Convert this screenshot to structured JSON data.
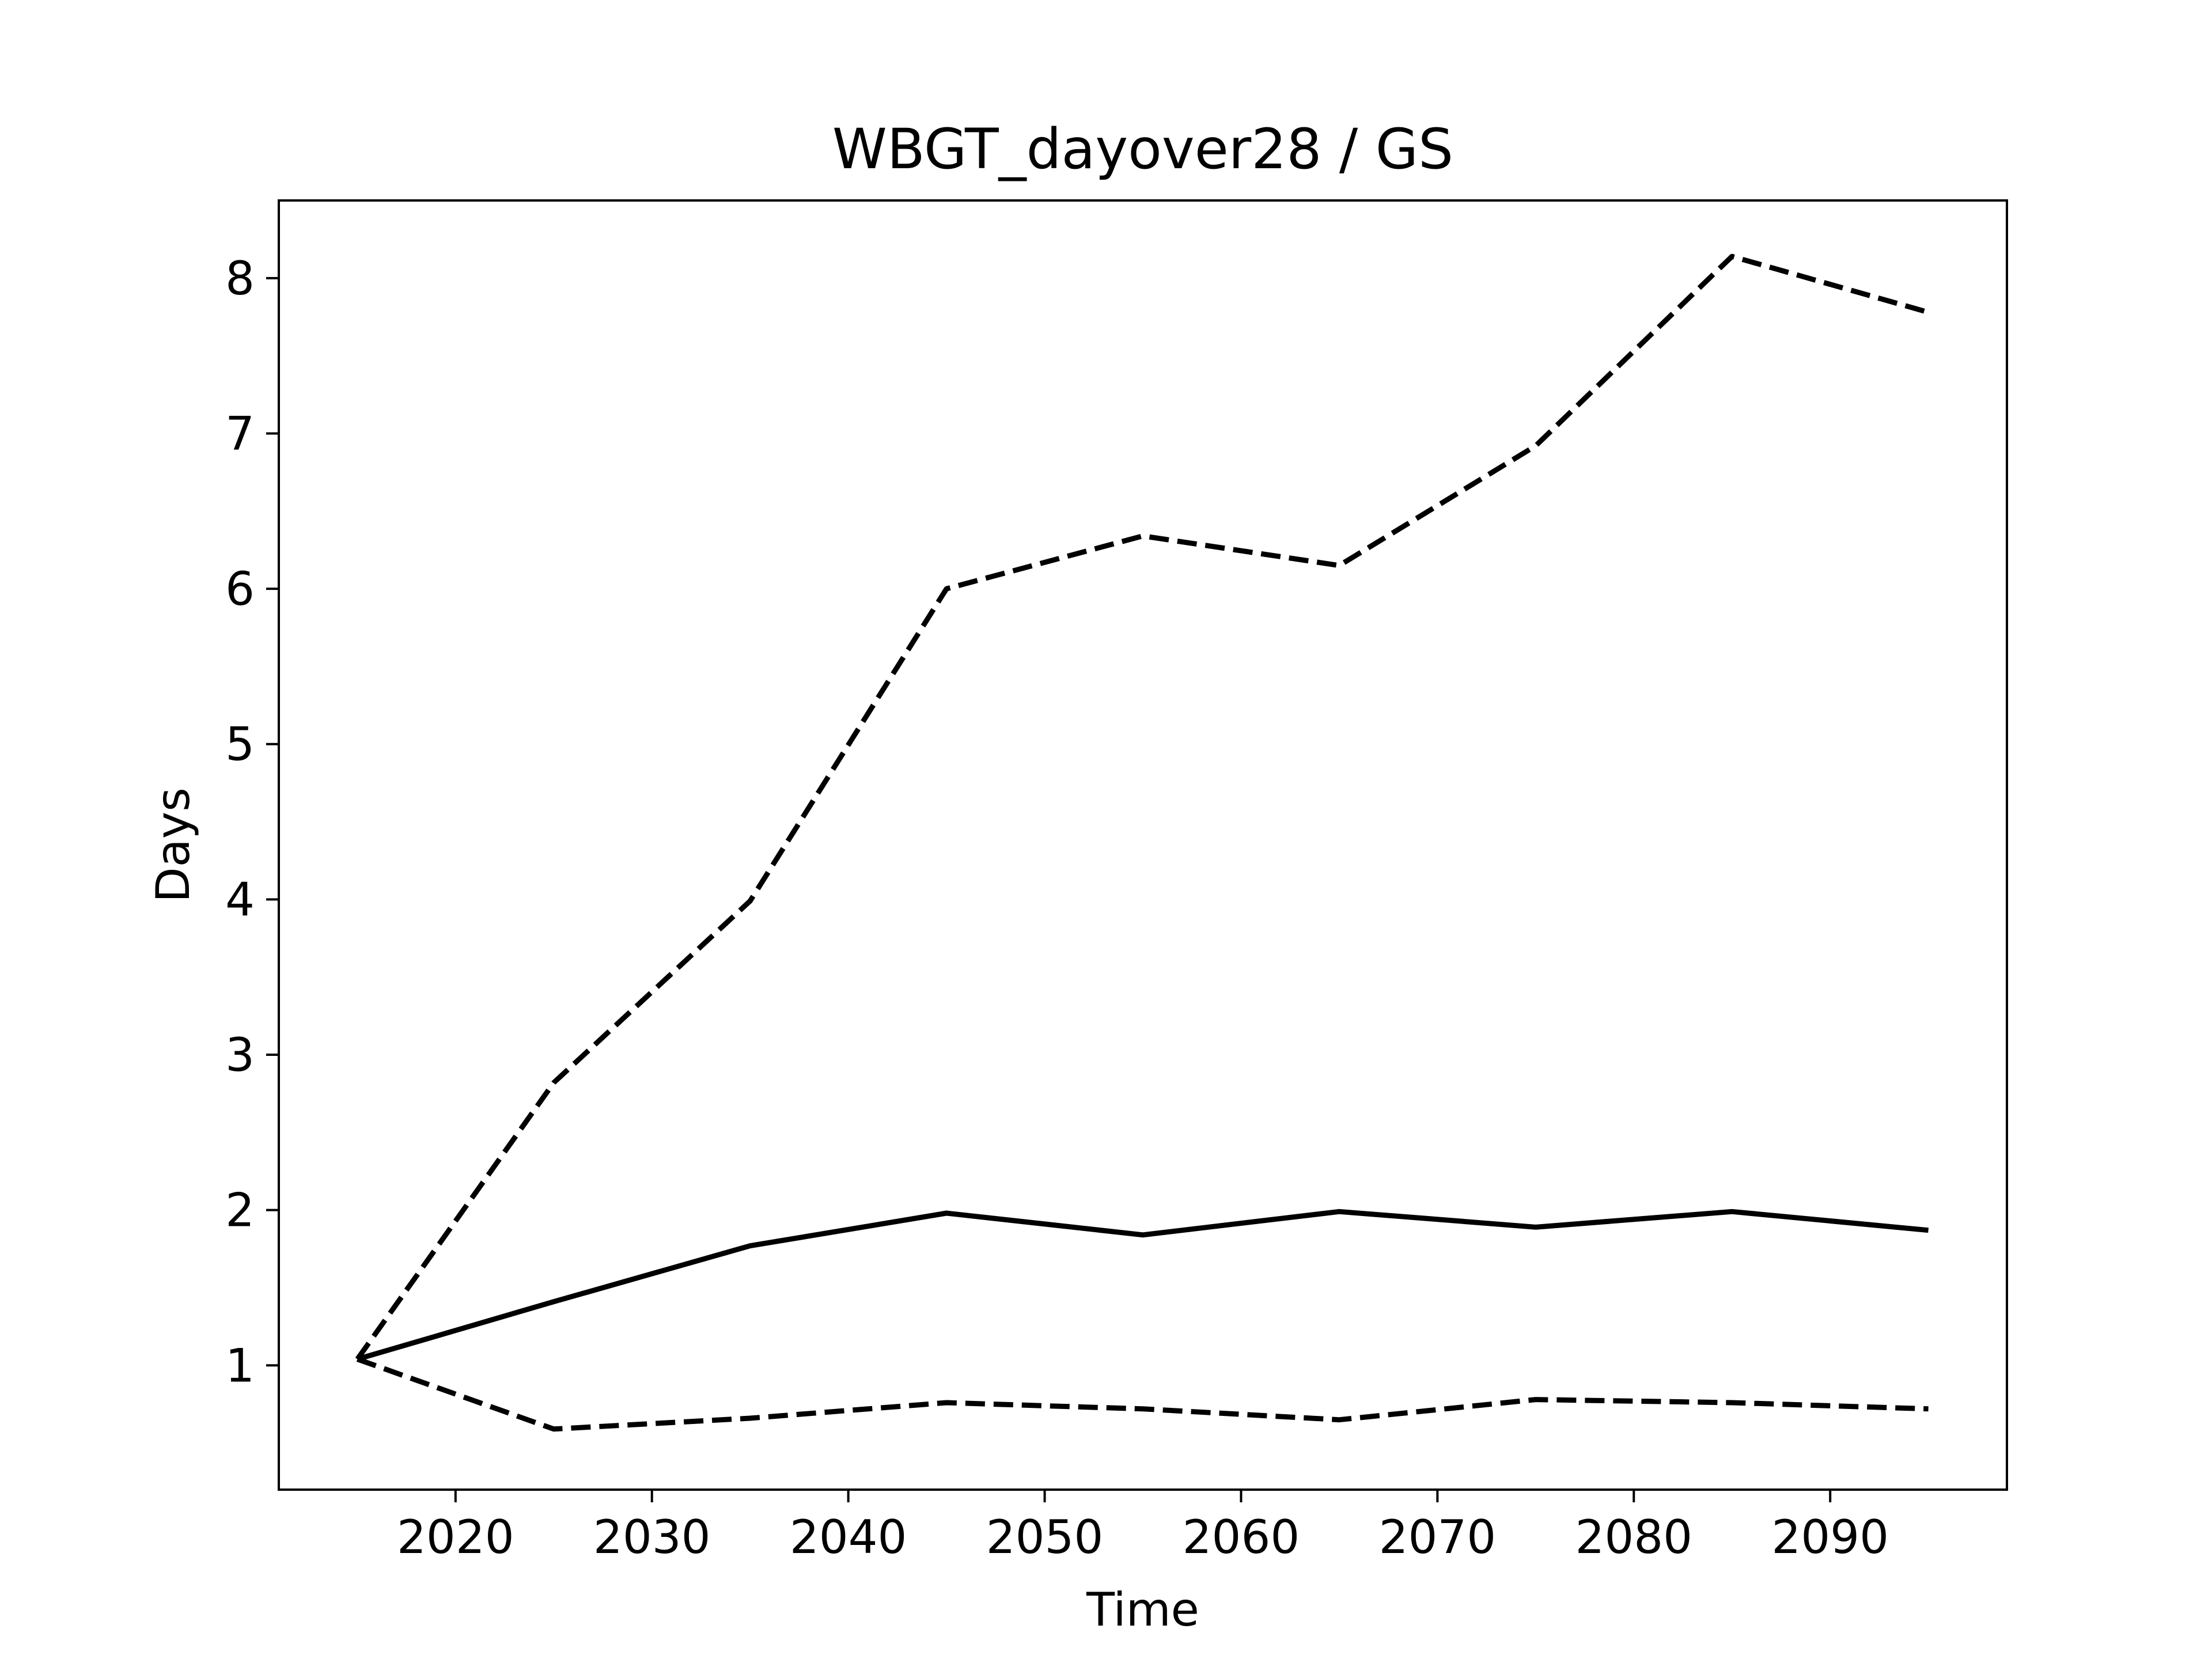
{
  "chart_data": {
    "type": "line",
    "title": "WBGT_dayover28 / GS",
    "xlabel": "Time",
    "ylabel": "Days",
    "x": [
      2015,
      2025,
      2035,
      2045,
      2055,
      2065,
      2075,
      2085,
      2095
    ],
    "series": [
      {
        "style": "solid",
        "color": "#000000",
        "values": [
          1.04,
          1.41,
          1.77,
          1.98,
          1.84,
          1.99,
          1.89,
          1.99,
          1.87
        ]
      },
      {
        "style": "dashed",
        "color": "#000000",
        "values": [
          1.04,
          2.82,
          3.99,
          6.0,
          6.34,
          6.15,
          6.92,
          8.14,
          7.78
        ]
      },
      {
        "style": "dashed",
        "color": "#000000",
        "values": [
          1.04,
          0.59,
          0.66,
          0.76,
          0.72,
          0.65,
          0.78,
          0.76,
          0.72
        ]
      }
    ],
    "xlim": [
      2011,
      2099
    ],
    "ylim": [
      0.2,
      8.5
    ],
    "xticks": [
      2020,
      2030,
      2040,
      2050,
      2060,
      2070,
      2080,
      2090
    ],
    "yticks": [
      1,
      2,
      3,
      4,
      5,
      6,
      7,
      8
    ],
    "grid": false,
    "legend": "none"
  }
}
